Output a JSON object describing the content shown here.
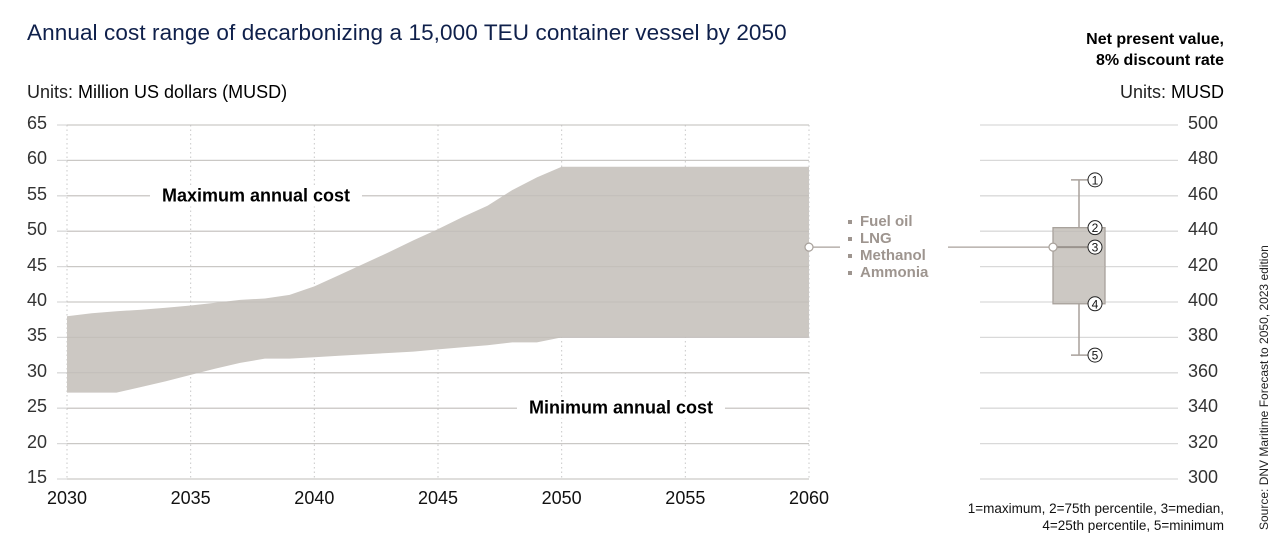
{
  "header": {
    "title": "Annual cost range of decarbonizing a 15,000 TEU container vessel by 2050",
    "npv_title_line1": "Net present value,",
    "npv_title_line2": "8% discount rate"
  },
  "units_left": {
    "prefix": "Units:",
    "value": "Million US dollars (MUSD)"
  },
  "units_right": {
    "prefix": "Units:",
    "value": "MUSD"
  },
  "fuels": [
    "Fuel oil",
    "LNG",
    "Methanol",
    "Ammonia"
  ],
  "box_legend_line1": "1=maximum, 2=75th percentile, 3=median,",
  "box_legend_line2": "4=25th percentile, 5=minimum",
  "source": "Source: DNV Maritime Forecast to 2050, 2023 edition",
  "colors": {
    "title": "#0f204b",
    "band": "#ccc8c3",
    "fuel_text": "#9e958f",
    "grid": "#d9d9d9",
    "box_stroke": "#a8a19b"
  },
  "chart_data": [
    {
      "type": "area",
      "title": "Annual cost range of decarbonizing a 15,000 TEU container vessel by 2050",
      "xlabel": "",
      "ylabel": "Million US dollars (MUSD)",
      "xlim": [
        2030,
        2060
      ],
      "ylim": [
        15,
        65
      ],
      "x_ticks": [
        2030,
        2035,
        2040,
        2045,
        2050,
        2055,
        2060
      ],
      "y_ticks": [
        15,
        20,
        25,
        30,
        35,
        40,
        45,
        50,
        55,
        60,
        65
      ],
      "grid": true,
      "x": [
        2030,
        2031,
        2032,
        2033,
        2034,
        2035,
        2036,
        2037,
        2038,
        2039,
        2040,
        2041,
        2042,
        2043,
        2044,
        2045,
        2046,
        2047,
        2048,
        2049,
        2050,
        2055,
        2060
      ],
      "series": [
        {
          "name": "Maximum annual cost",
          "values": [
            38.0,
            38.4,
            38.7,
            38.9,
            39.2,
            39.5,
            39.9,
            40.3,
            40.5,
            41.0,
            42.2,
            43.8,
            45.4,
            47.0,
            48.7,
            50.3,
            52.0,
            53.6,
            55.8,
            57.6,
            59.1,
            59.1,
            59.1
          ]
        },
        {
          "name": "Minimum annual cost",
          "values": [
            27.2,
            27.2,
            27.2,
            28.0,
            28.8,
            29.7,
            30.6,
            31.4,
            32.0,
            32.0,
            32.2,
            32.4,
            32.6,
            32.8,
            33.0,
            33.3,
            33.6,
            33.9,
            34.3,
            34.3,
            35.0,
            35.0,
            35.0
          ]
        }
      ],
      "annotations": [
        "Maximum annual cost",
        "Minimum annual cost"
      ]
    },
    {
      "type": "boxplot",
      "title": "Net present value, 8% discount rate",
      "ylabel": "MUSD",
      "ylim": [
        300,
        500
      ],
      "y_ticks": [
        300,
        320,
        340,
        360,
        380,
        400,
        420,
        440,
        460,
        480,
        500
      ],
      "grid": true,
      "box": {
        "max": 469,
        "q3": 442,
        "median": 431,
        "q1": 399,
        "min": 370
      },
      "markers": [
        "1",
        "2",
        "3",
        "4",
        "5"
      ],
      "categories": [
        "Fuel oil",
        "LNG",
        "Methanol",
        "Ammonia"
      ]
    }
  ]
}
